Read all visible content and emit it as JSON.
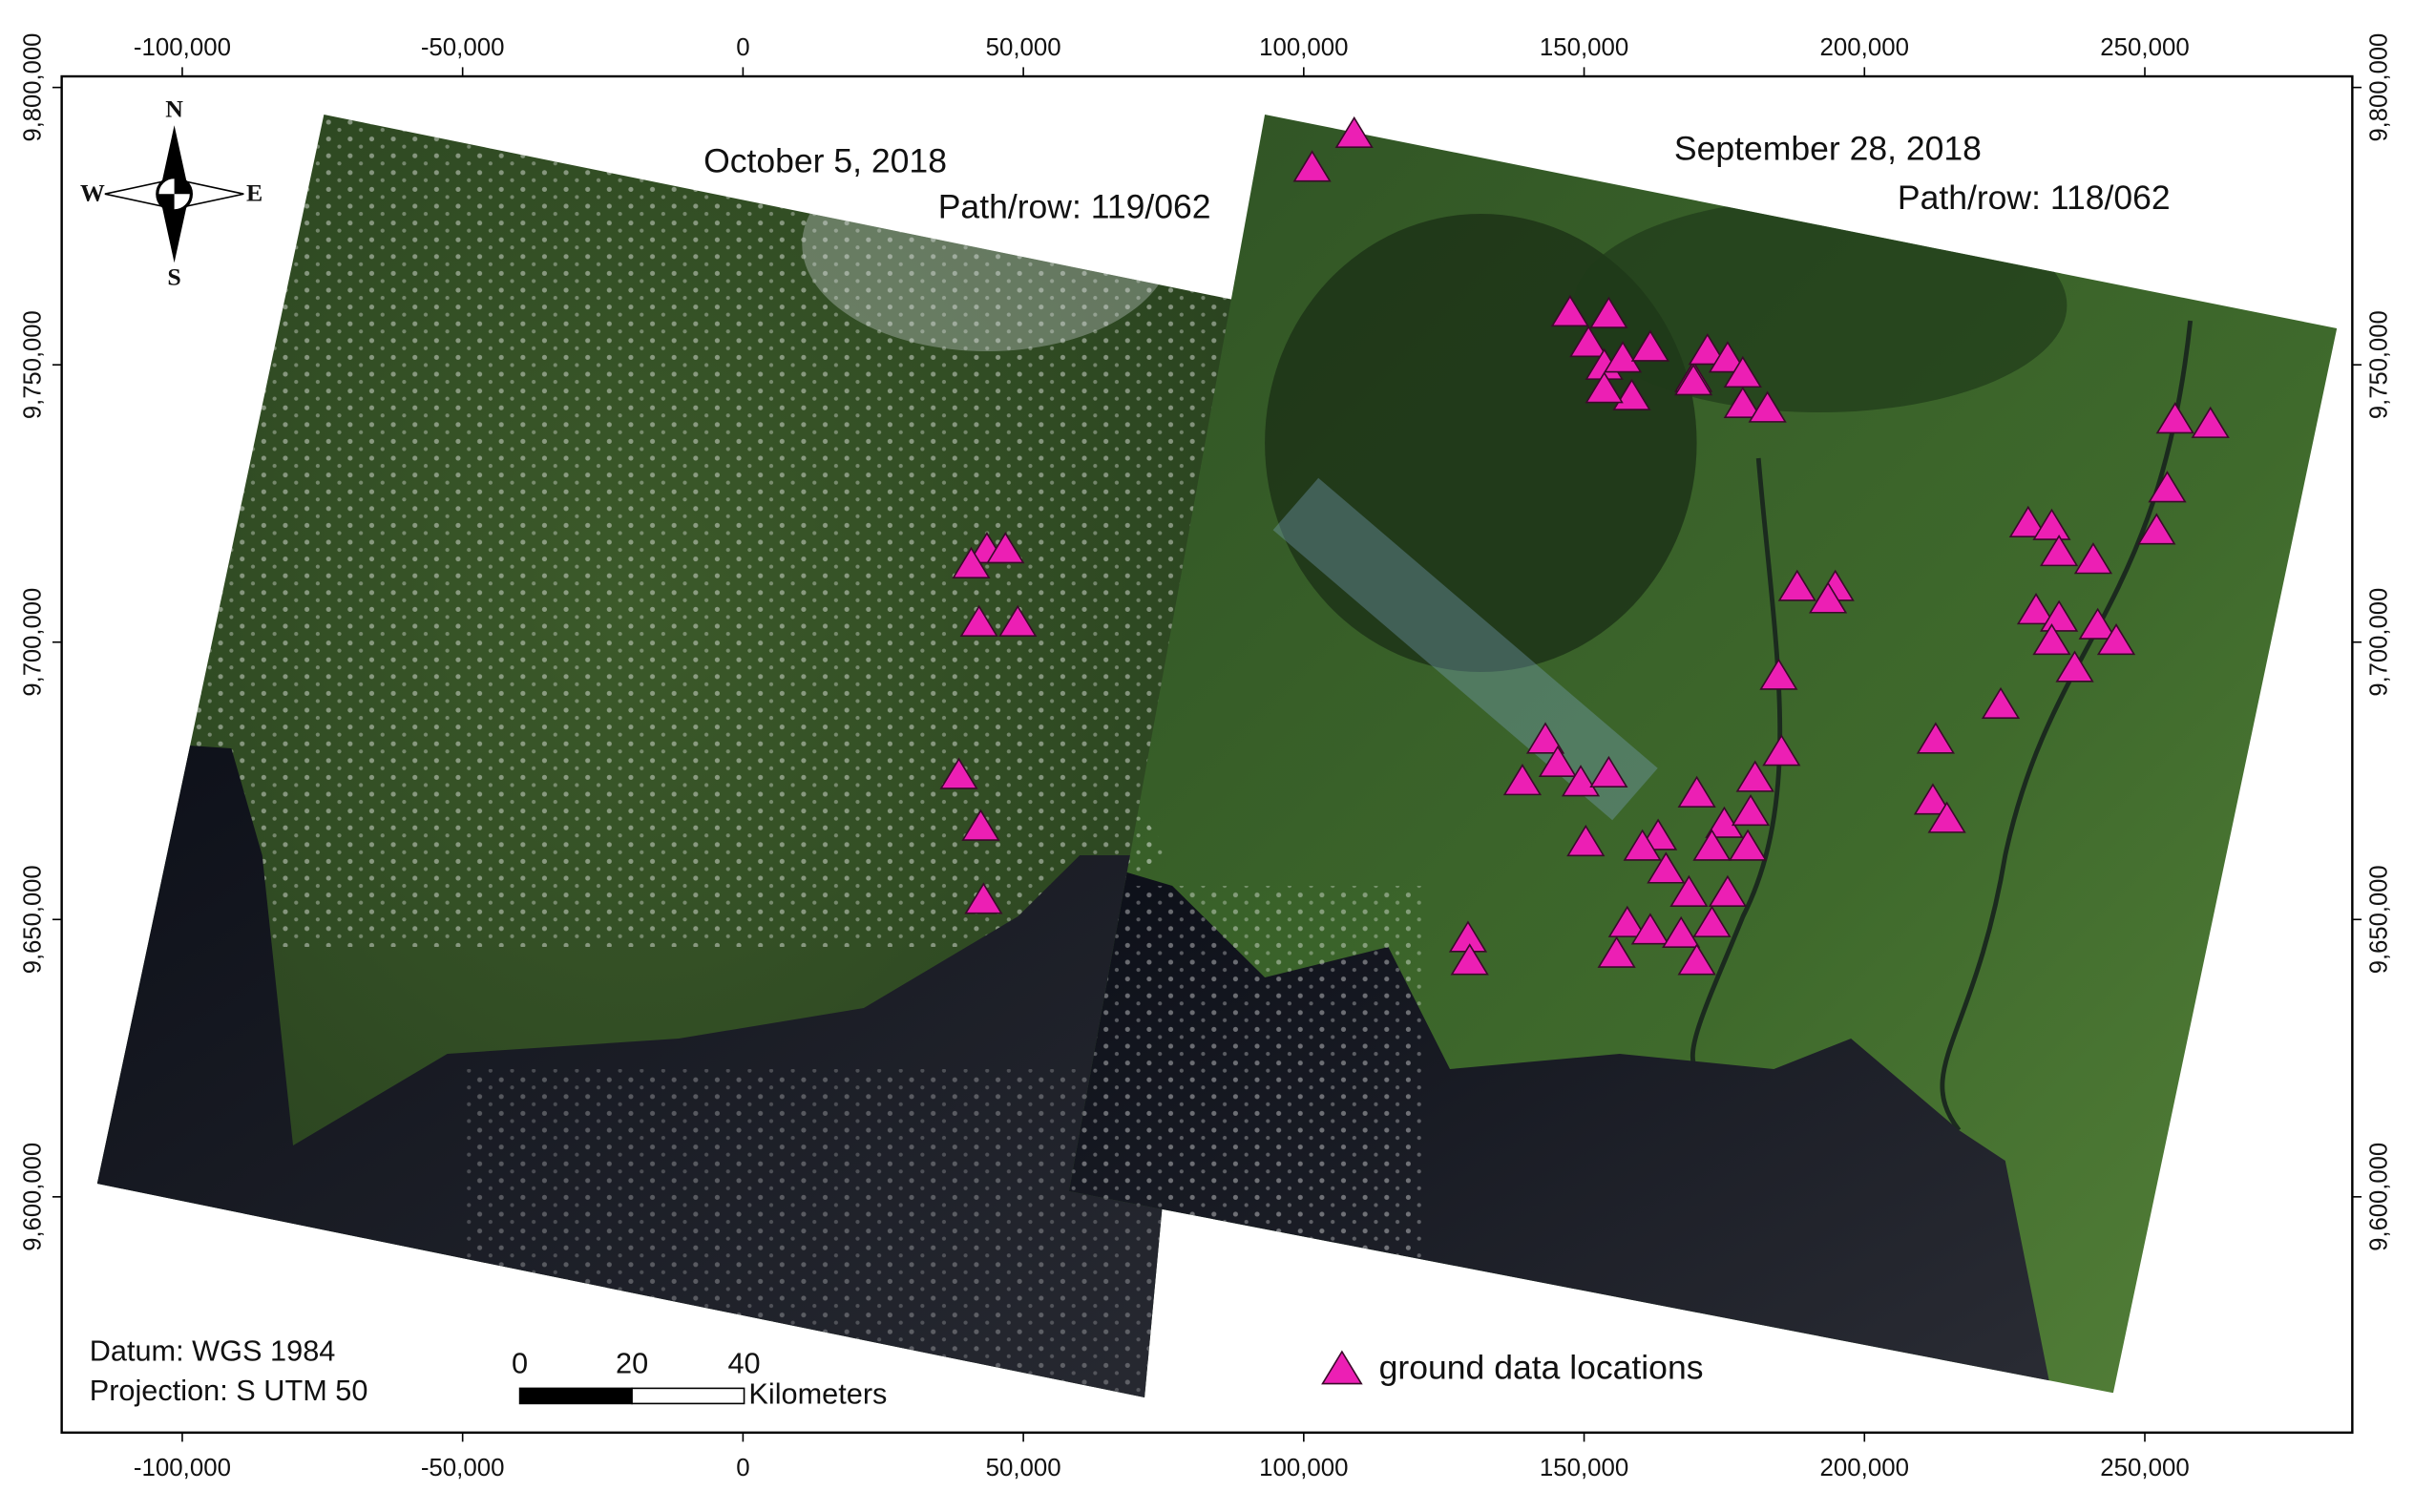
{
  "map": {
    "type": "scatter",
    "xlim": [
      -121500,
      287000
    ],
    "ylim": [
      9557500,
      9802000
    ],
    "xticks": [
      {
        "value": -100000,
        "label": "-100,000"
      },
      {
        "value": -50000,
        "label": "-50,000"
      },
      0,
      {
        "value": 50000,
        "label": "50,000"
      },
      {
        "value": 100000,
        "label": "100,000"
      },
      {
        "value": 150000,
        "label": "150,000"
      },
      {
        "value": 200000,
        "label": "200,000"
      },
      {
        "value": 250000,
        "label": "250,000"
      }
    ],
    "yticks": [
      {
        "value": 9600000,
        "label": "9,600,000"
      },
      {
        "value": 9650000,
        "label": "9,650,000"
      },
      {
        "value": 9700000,
        "label": "9,700,000"
      },
      {
        "value": 9750000,
        "label": "9,750,000"
      },
      {
        "value": 9800000,
        "label": "9,800,000"
      }
    ],
    "scenes": [
      {
        "date": "October 5, 2018",
        "path_row": "Path/row: 119/062"
      },
      {
        "date": "September 28, 2018",
        "path_row": "Path/row: 118/062"
      }
    ],
    "compass": {
      "n": "N",
      "s": "S",
      "e": "E",
      "w": "W"
    },
    "datum": "Datum: WGS 1984",
    "projection": "Projection: S UTM 50",
    "scale_bar": {
      "ticks": [
        0,
        20,
        40
      ],
      "unit": "Kilometers"
    },
    "series": [
      {
        "name": "ground data locations",
        "color": "#ec1fb4",
        "x": [
          43500,
          40700,
          46800,
          42100,
          49000,
          38500,
          42400,
          42900,
          109000,
          101500,
          147500,
          154400,
          150800,
          153600,
          156900,
          161800,
          158500,
          153600,
          169500,
          172000,
          175600,
          178300,
          178300,
          182700,
          169500,
          188000,
          194800,
          193500,
          184700,
          143100,
          139000,
          145300,
          149400,
          154400,
          150300,
          170100,
          163200,
          175000,
          179700,
          185200,
          180500,
          160400,
          164600,
          172800,
          168700,
          175600,
          172800,
          157700,
          161800,
          155800,
          167300,
          170100,
          179200,
          129300,
          129600,
          212700,
          212200,
          214700,
          224300,
          229200,
          233400,
          234700,
          240800,
          230600,
          234700,
          241600,
          244900,
          237500,
          233400,
          255400,
          261700,
          254000,
          252100
        ],
        "values": [
          9716600,
          9713900,
          9716600,
          9703400,
          9703400,
          9675900,
          9666600,
          9653400,
          9791500,
          9785400,
          9759300,
          9759000,
          9753800,
          9749700,
          9751000,
          9753000,
          9744200,
          9745500,
          9747500,
          9752400,
          9751000,
          9748300,
          9742800,
          9742000,
          9746900,
          9709800,
          9709800,
          9707600,
          9693800,
          9682300,
          9674800,
          9678100,
          9674600,
          9676200,
          9663800,
          9672600,
          9664900,
          9667100,
          9669300,
          9680100,
          9675400,
          9663000,
          9658900,
          9663000,
          9654700,
          9654700,
          9649200,
          9649200,
          9647900,
          9643700,
          9647300,
          9642400,
          9663000,
          9646500,
          9642400,
          9682300,
          9671300,
          9668000,
          9688600,
          9721300,
          9720800,
          9716100,
          9714700,
          9705600,
          9704300,
          9702900,
          9700100,
          9695200,
          9700100,
          9740000,
          9739200,
          9727600,
          9720000
        ]
      }
    ]
  }
}
